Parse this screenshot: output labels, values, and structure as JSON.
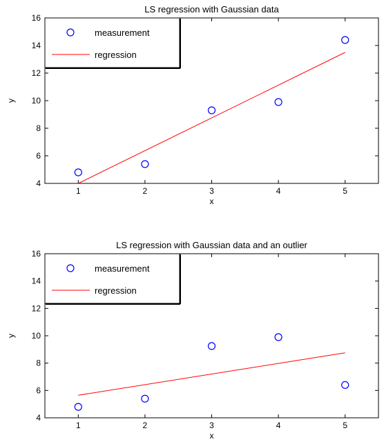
{
  "figure": {
    "colors": {
      "measurement": "#0000ff",
      "regression": "#ff0000",
      "axes": "#000000",
      "background": "#ffffff"
    }
  },
  "chart_data": [
    {
      "type": "scatter",
      "title": "LS regression with Gaussian data",
      "xlabel": "x",
      "ylabel": "y",
      "xlim": [
        0.5,
        5.5
      ],
      "ylim": [
        4,
        16
      ],
      "xticks": [
        1,
        2,
        3,
        4,
        5
      ],
      "yticks": [
        4,
        6,
        8,
        10,
        12,
        14,
        16
      ],
      "grid": false,
      "legend_position": "top-left",
      "series": [
        {
          "name": "measurement",
          "kind": "marker",
          "marker": "circle",
          "x": [
            1,
            2,
            3,
            4,
            5
          ],
          "y": [
            4.8,
            5.4,
            9.3,
            9.9,
            14.4
          ]
        },
        {
          "name": "regression",
          "kind": "line",
          "x": [
            1,
            5
          ],
          "y": [
            4.0,
            13.5
          ]
        }
      ]
    },
    {
      "type": "scatter",
      "title": "LS regression with Gaussian data and an outlier",
      "xlabel": "x",
      "ylabel": "y",
      "xlim": [
        0.5,
        5.5
      ],
      "ylim": [
        4,
        16
      ],
      "xticks": [
        1,
        2,
        3,
        4,
        5
      ],
      "yticks": [
        4,
        6,
        8,
        10,
        12,
        14,
        16
      ],
      "grid": false,
      "legend_position": "top-left",
      "series": [
        {
          "name": "measurement",
          "kind": "marker",
          "marker": "circle",
          "x": [
            1,
            2,
            3,
            4,
            5
          ],
          "y": [
            4.8,
            5.4,
            9.25,
            9.9,
            6.4
          ]
        },
        {
          "name": "regression",
          "kind": "line",
          "x": [
            1,
            5
          ],
          "y": [
            5.65,
            8.75
          ]
        }
      ]
    }
  ]
}
